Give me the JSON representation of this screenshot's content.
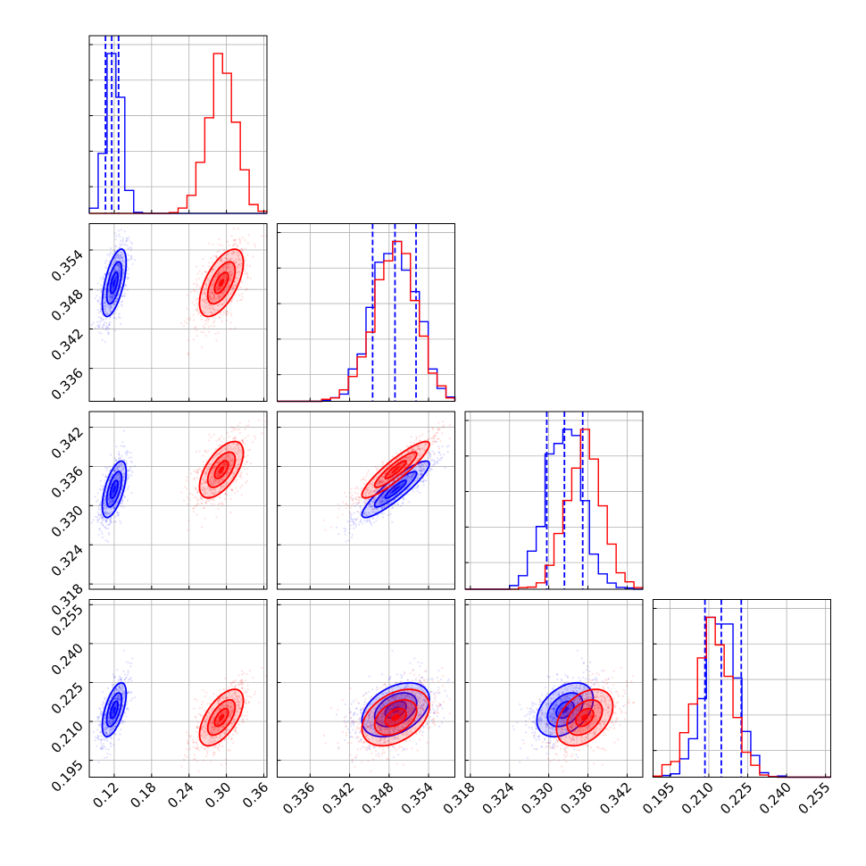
{
  "chart_data": {
    "type": "corner",
    "colors": {
      "series_a": "#0000ff",
      "series_b": "#ff0000"
    },
    "grid": true,
    "params": [
      {
        "range": [
          0.08,
          0.365
        ],
        "ticks": [
          "0.12",
          "0.18",
          "0.24",
          "0.30",
          "0.36"
        ],
        "tick_values": [
          0.12,
          0.18,
          0.24,
          0.3,
          0.36
        ]
      },
      {
        "range": [
          0.331,
          0.358
        ],
        "ticks": [
          "0.336",
          "0.342",
          "0.348",
          "0.354"
        ],
        "tick_values": [
          0.336,
          0.342,
          0.348,
          0.354
        ]
      },
      {
        "range": [
          0.3172,
          0.3444
        ],
        "ticks": [
          "0.318",
          "0.324",
          "0.330",
          "0.336",
          "0.342"
        ],
        "tick_values": [
          0.318,
          0.324,
          0.33,
          0.336,
          0.342
        ]
      },
      {
        "range": [
          0.1885,
          0.257
        ],
        "ticks": [
          "0.195",
          "0.210",
          "0.225",
          "0.240",
          "0.255"
        ],
        "tick_values": [
          0.195,
          0.21,
          0.225,
          0.24,
          0.255
        ]
      }
    ],
    "series": [
      {
        "color": "#0000ff",
        "means": [
          0.12,
          0.349,
          0.3325,
          0.2145
        ],
        "sigmas": [
          0.012,
          0.0032,
          0.0027,
          0.0065
        ],
        "corr": [
          [
            1,
            0.6,
            0.6,
            0.6
          ],
          [
            0.6,
            1,
            0.9,
            0.4
          ],
          [
            0.6,
            0.9,
            1,
            0.4
          ],
          [
            0.6,
            0.4,
            0.4,
            1
          ]
        ],
        "quantiles": [
          [
            0.106,
            0.116,
            0.127
          ],
          [
            0.3455,
            0.3489,
            0.3521
          ],
          [
            0.3297,
            0.3324,
            0.3352
          ],
          [
            0.2085,
            0.2148,
            0.2225
          ]
        ]
      },
      {
        "color": "#ff0000",
        "means": [
          0.292,
          0.349,
          0.3355,
          0.2115
        ],
        "sigmas": [
          0.022,
          0.0032,
          0.0027,
          0.0068
        ],
        "corr": [
          [
            1,
            0.6,
            0.6,
            0.6
          ],
          [
            0.6,
            1,
            0.9,
            0.4
          ],
          [
            0.6,
            0.9,
            1,
            0.4
          ],
          [
            0.6,
            0.4,
            0.4,
            1
          ]
        ]
      }
    ]
  }
}
